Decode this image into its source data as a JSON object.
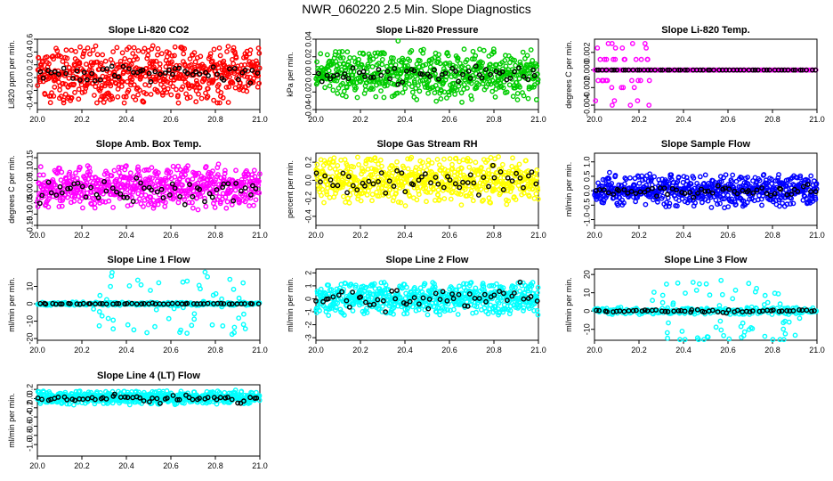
{
  "page_title": "NWR_060220  2.5 Min. Slope Diagnostics",
  "chart_data": [
    {
      "type": "scatter",
      "title": "Slope Li-820 CO2",
      "ylabel": "Li820 ppm per min.",
      "color": "#ff0000",
      "xlim": [
        20.0,
        21.0
      ],
      "ylim": [
        -0.5,
        0.6
      ],
      "xticks": [
        20.0,
        20.2,
        20.4,
        20.6,
        20.8,
        21.0
      ],
      "yticks": [
        -0.4,
        -0.2,
        0.0,
        0.2,
        0.4,
        0.6
      ],
      "ytick_labels": [
        "-0.4",
        "-0.2",
        "0.0",
        "0.2",
        "0.4",
        "0.6"
      ],
      "series": [
        {
          "name": "main",
          "points": 600,
          "center": 0.05,
          "spread": 0.28,
          "step_spike": null
        },
        {
          "name": "black",
          "color": "#000000",
          "points": 55,
          "center": 0.05,
          "spread": 0.12
        }
      ]
    },
    {
      "type": "scatter",
      "title": "Slope Li-820 Pressure",
      "ylabel": "kPa per min.",
      "color": "#00cc00",
      "xlim": [
        20.0,
        21.0
      ],
      "ylim": [
        -0.04,
        0.04
      ],
      "xticks": [
        20.0,
        20.2,
        20.4,
        20.6,
        20.8,
        21.0
      ],
      "yticks": [
        -0.04,
        -0.02,
        0.0,
        0.02,
        0.04
      ],
      "ytick_labels": [
        "-0.04",
        "-0.02",
        "0.00",
        "0.02",
        "0.04"
      ],
      "series": [
        {
          "name": "main",
          "points": 600,
          "center": 0.0,
          "spread": 0.018
        },
        {
          "name": "black",
          "color": "#000000",
          "points": 55,
          "center": 0.0,
          "spread": 0.006
        }
      ]
    },
    {
      "type": "scatter",
      "title": "Slope Li-820 Temp.",
      "ylabel": "degrees C per min.",
      "color": "#ff00ff",
      "xlim": [
        20.0,
        21.0
      ],
      "ylim": [
        -0.0045,
        0.0035
      ],
      "xticks": [
        20.0,
        20.2,
        20.4,
        20.6,
        20.8,
        21.0
      ],
      "yticks": [
        -0.004,
        -0.002,
        0.0,
        0.002
      ],
      "ytick_labels": [
        "-0.004",
        "-0.002",
        "0.000",
        "0.002"
      ],
      "series": [
        {
          "name": "main",
          "points": 150,
          "center": 0.0,
          "spread": 0.0,
          "early_burst": true
        },
        {
          "name": "black",
          "color": "#000000",
          "points": 60,
          "center": 0.0,
          "spread": 0.0
        }
      ]
    },
    {
      "type": "scatter",
      "title": "Slope Amb. Box Temp.",
      "ylabel": "degrees C per min.",
      "color": "#ff00ff",
      "xlim": [
        20.0,
        21.0
      ],
      "ylim": [
        -0.15,
        0.17
      ],
      "xticks": [
        20.0,
        20.2,
        20.4,
        20.6,
        20.8,
        21.0
      ],
      "yticks": [
        -0.15,
        -0.1,
        -0.05,
        0.0,
        0.05,
        0.1,
        0.15
      ],
      "ytick_labels": [
        "-0.15",
        "-0.10",
        "-0.05",
        "0.00",
        "0.05",
        "0.10",
        "0.15"
      ],
      "series": [
        {
          "name": "main",
          "points": 600,
          "center": 0.02,
          "spread": 0.06
        },
        {
          "name": "black",
          "color": "#000000",
          "points": 55,
          "center": 0.0,
          "spread": 0.04
        }
      ]
    },
    {
      "type": "scatter",
      "title": "Slope Gas Stream RH",
      "ylabel": "percent per min.",
      "color": "#ffff00",
      "xlim": [
        20.0,
        21.0
      ],
      "ylim": [
        -0.5,
        0.3
      ],
      "xticks": [
        20.0,
        20.2,
        20.4,
        20.6,
        20.8,
        21.0
      ],
      "yticks": [
        -0.4,
        -0.2,
        0.0,
        0.2
      ],
      "ytick_labels": [
        "-0.4",
        "-0.2",
        "0.0",
        "0.2"
      ],
      "series": [
        {
          "name": "main",
          "points": 600,
          "center": 0.0,
          "spread": 0.16
        },
        {
          "name": "black",
          "color": "#000000",
          "points": 55,
          "center": 0.0,
          "spread": 0.1
        }
      ]
    },
    {
      "type": "scatter",
      "title": "Slope Sample Flow",
      "ylabel": "ml/min per min.",
      "color": "#0000ff",
      "xlim": [
        20.0,
        21.0
      ],
      "ylim": [
        -1.2,
        1.3
      ],
      "xticks": [
        20.0,
        20.2,
        20.4,
        20.6,
        20.8,
        21.0
      ],
      "yticks": [
        -1.0,
        -0.5,
        0.0,
        0.5,
        1.0
      ],
      "ytick_labels": [
        "-1.0",
        "-0.5",
        "0.0",
        "0.5",
        "1.0"
      ],
      "series": [
        {
          "name": "main",
          "points": 600,
          "center": 0.0,
          "spread": 0.35
        },
        {
          "name": "black",
          "color": "#000000",
          "points": 55,
          "center": 0.0,
          "spread": 0.15
        }
      ]
    },
    {
      "type": "scatter",
      "title": "Slope Line 1 Flow",
      "ylabel": "ml/min per min.",
      "color": "#00ffff",
      "xlim": [
        20.0,
        21.0
      ],
      "ylim": [
        -21,
        20
      ],
      "xticks": [
        20.0,
        20.2,
        20.4,
        20.6,
        20.8,
        21.0
      ],
      "yticks": [
        -20,
        -10,
        0,
        10
      ],
      "ytick_labels": [
        "-20",
        "-10",
        "0",
        "10"
      ],
      "series": [
        {
          "name": "main",
          "points": 250,
          "center": 0.0,
          "spread": 0.6,
          "outliers": 60
        },
        {
          "name": "black",
          "color": "#000000",
          "points": 55,
          "center": 0.0,
          "spread": 0.2
        }
      ]
    },
    {
      "type": "scatter",
      "title": "Slope Line 2 Flow",
      "ylabel": "ml/min per min.",
      "color": "#00ffff",
      "xlim": [
        20.0,
        21.0
      ],
      "ylim": [
        -3.2,
        2.3
      ],
      "xticks": [
        20.0,
        20.2,
        20.4,
        20.6,
        20.8,
        21.0
      ],
      "yticks": [
        -3,
        -2,
        -1,
        0,
        1,
        2
      ],
      "ytick_labels": [
        "-3",
        "-2",
        "-1",
        "0",
        "1",
        "2"
      ],
      "series": [
        {
          "name": "main",
          "points": 600,
          "center": 0.0,
          "spread": 0.8
        },
        {
          "name": "black",
          "color": "#000000",
          "points": 55,
          "center": 0.0,
          "spread": 0.6
        }
      ]
    },
    {
      "type": "scatter",
      "title": "Slope Line 3 Flow",
      "ylabel": "ml/min per min.",
      "color": "#00ffff",
      "xlim": [
        20.0,
        21.0
      ],
      "ylim": [
        -16,
        23
      ],
      "xticks": [
        20.0,
        20.2,
        20.4,
        20.6,
        20.8,
        21.0
      ],
      "yticks": [
        -10,
        0,
        10,
        20
      ],
      "ytick_labels": [
        "-10",
        "0",
        "10",
        "20"
      ],
      "series": [
        {
          "name": "main",
          "points": 250,
          "center": 0.0,
          "spread": 1.2,
          "outliers": 70
        },
        {
          "name": "black",
          "color": "#000000",
          "points": 55,
          "center": 0.0,
          "spread": 0.6
        }
      ]
    },
    {
      "type": "scatter",
      "title": "Slope Line 4 (LT) Flow",
      "ylabel": "ml/min per min.",
      "color": "#00ffff",
      "xlim": [
        20.0,
        21.0
      ],
      "ylim": [
        -1.25,
        0.3
      ],
      "xticks": [
        20.0,
        20.2,
        20.4,
        20.6,
        20.8,
        21.0
      ],
      "yticks": [
        -1.0,
        -0.8,
        -0.6,
        -0.4,
        -0.2,
        0.0,
        0.2
      ],
      "ytick_labels": [
        "-1.0",
        "-0.8",
        "-0.6",
        "-0.4",
        "-0.2",
        "0.0",
        "0.2"
      ],
      "series": [
        {
          "name": "main",
          "points": 600,
          "center": 0.02,
          "spread": 0.09
        },
        {
          "name": "black",
          "color": "#000000",
          "points": 55,
          "center": 0.0,
          "spread": 0.07
        }
      ]
    }
  ]
}
